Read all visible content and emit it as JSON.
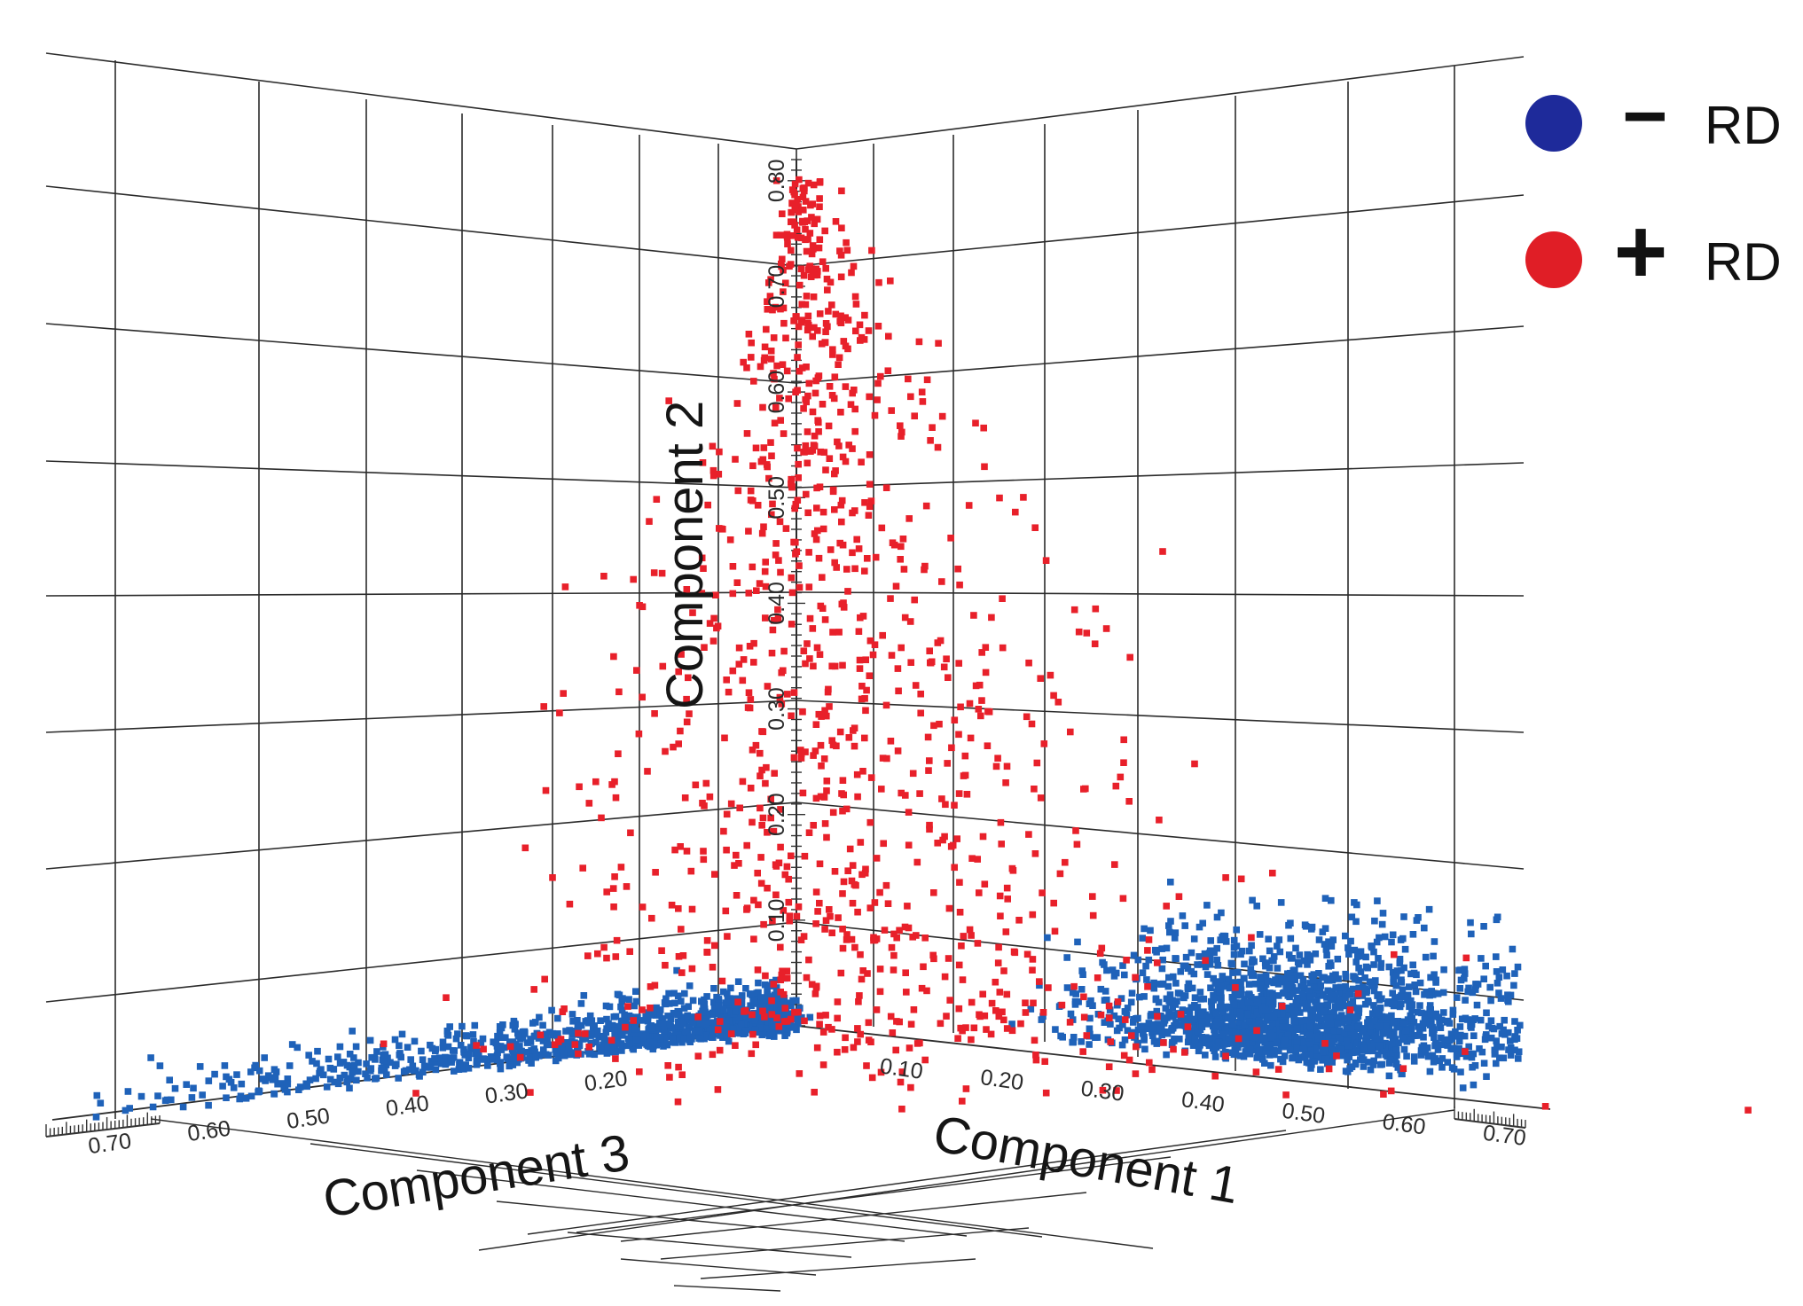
{
  "chart_data": {
    "type": "scatter3d",
    "axes": {
      "x": {
        "label": "Component 1",
        "ticks": [
          "0.10",
          "0.20",
          "0.30",
          "0.40",
          "0.50",
          "0.60",
          "0.70"
        ],
        "range": [
          0,
          0.75
        ]
      },
      "y": {
        "label": "Component 2",
        "ticks": [
          "0.10",
          "0.20",
          "0.30",
          "0.40",
          "0.50",
          "0.60",
          "0.70",
          "0.80"
        ],
        "range": [
          0,
          0.82
        ]
      },
      "z": {
        "label": "Component 3",
        "ticks": [
          "0.20",
          "0.30",
          "0.40",
          "0.50",
          "0.60",
          "0.70"
        ],
        "range": [
          0,
          0.75
        ]
      }
    },
    "grid": true,
    "legend_position": "top-right",
    "series": [
      {
        "name": "− RD",
        "color": "#1f62b9",
        "legend_color": "#1e2a9a",
        "clusters": [
          {
            "component_1_range": [
              0.25,
              0.72
            ],
            "component_2_range": [
              0.0,
              0.18
            ],
            "component_3_range": [
              0.0,
              0.05
            ],
            "count": 1700
          },
          {
            "component_1_range": [
              0.0,
              0.05
            ],
            "component_2_range": [
              0.0,
              0.05
            ],
            "component_3_range": [
              0.0,
              0.72
            ],
            "count": 1100
          }
        ]
      },
      {
        "name": "+ RD",
        "color": "#e8202a",
        "legend_color": "#e01e26",
        "clusters": [
          {
            "component_1_range": [
              0.0,
              0.45
            ],
            "component_2_range": [
              0.0,
              0.82
            ],
            "component_3_range": [
              0.0,
              0.35
            ],
            "count": 1150
          }
        ]
      }
    ]
  },
  "legend": {
    "items": [
      {
        "symbol": "−",
        "label": "RD"
      },
      {
        "symbol": "+",
        "label": "RD"
      }
    ]
  }
}
